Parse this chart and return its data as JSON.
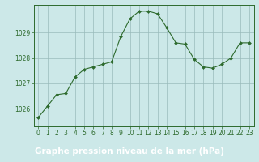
{
  "x": [
    0,
    1,
    2,
    3,
    4,
    5,
    6,
    7,
    8,
    9,
    10,
    11,
    12,
    13,
    14,
    15,
    16,
    17,
    18,
    19,
    20,
    21,
    22,
    23
  ],
  "y": [
    1025.65,
    1026.1,
    1026.55,
    1026.6,
    1027.25,
    1027.55,
    1027.65,
    1027.75,
    1027.85,
    1028.85,
    1029.55,
    1029.85,
    1029.85,
    1029.75,
    1029.2,
    1028.6,
    1028.55,
    1027.95,
    1027.65,
    1027.6,
    1027.75,
    1028.0,
    1028.6,
    1028.6
  ],
  "line_color": "#2d6a2d",
  "marker_color": "#2d6a2d",
  "bg_color": "#cce8e8",
  "plot_bg_color": "#cce8e8",
  "grid_color": "#99bbbb",
  "axis_color": "#2d6a2d",
  "bottom_bar_color": "#2d6a2d",
  "bottom_text_color": "#ffffff",
  "tick_color": "#2d6a2d",
  "title": "Graphe pression niveau de la mer (hPa)",
  "xlim": [
    -0.5,
    23.5
  ],
  "ylim": [
    1025.3,
    1030.1
  ],
  "yticks": [
    1026,
    1027,
    1028,
    1029
  ],
  "xticks": [
    0,
    1,
    2,
    3,
    4,
    5,
    6,
    7,
    8,
    9,
    10,
    11,
    12,
    13,
    14,
    15,
    16,
    17,
    18,
    19,
    20,
    21,
    22,
    23
  ],
  "title_fontsize": 7.5,
  "tick_fontsize": 5.5
}
